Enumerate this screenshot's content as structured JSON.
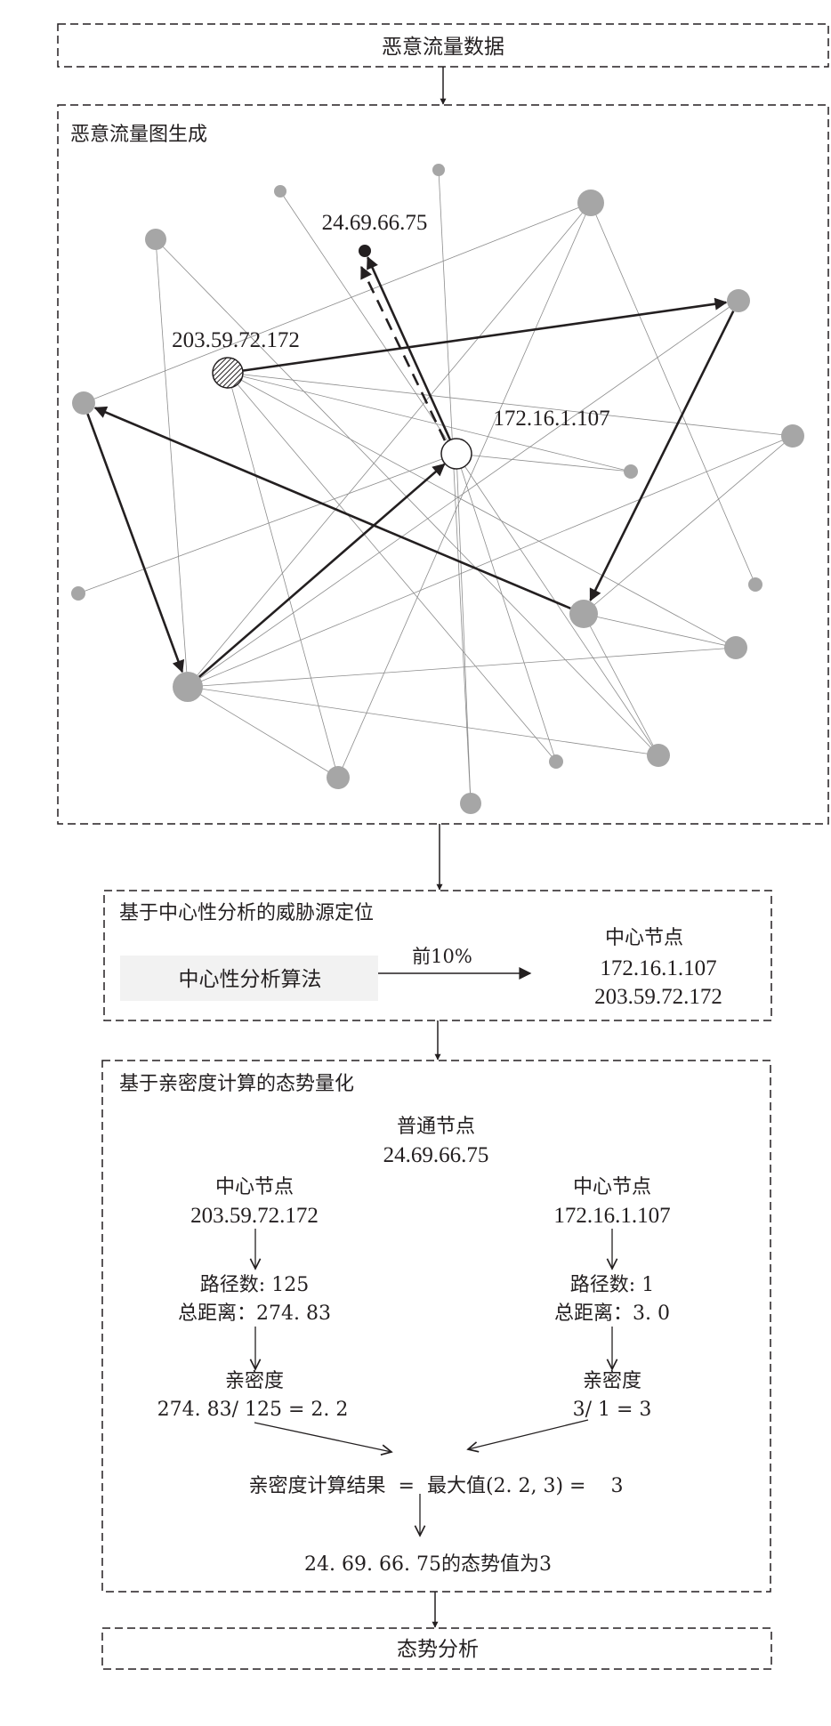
{
  "input_box": {
    "label": "恶意流量数据"
  },
  "graph_box": {
    "title": "恶意流量图生成",
    "labels": {
      "target": "24.69.66.75",
      "hub_a": "203.59.72.172",
      "hub_b": "172.16.1.107"
    },
    "colors": {
      "node": "#a6a6a6",
      "edge": "#8c8c8c",
      "arrow": "#231f20"
    }
  },
  "centrality_box": {
    "title": "基于中心性分析的威胁源定位",
    "algorithm": "中心性分析算法",
    "arrow_label": "前10%",
    "result_title": "中心节点",
    "result_nodes": [
      "172.16.1.107",
      "203.59.72.172"
    ],
    "algorithm_fill": "#f2f2f2"
  },
  "intimacy_box": {
    "title": "基于亲密度计算的态势量化",
    "normal_node_title": "普通节点",
    "normal_node_ip": "24.69.66.75",
    "left": {
      "title": "中心节点",
      "ip": "203.59.72.172",
      "paths": "路径数:  125",
      "distance": "总距离：274. 83",
      "intimacy_title": "亲密度",
      "intimacy": "274. 83/ 125  =  2. 2"
    },
    "right": {
      "title": "中心节点",
      "ip": "172.16.1.107",
      "paths": "路径数:  1",
      "distance": "总距离：3. 0",
      "intimacy_title": "亲密度",
      "intimacy": "3/ 1  =  3"
    },
    "result": "亲密度计算结果  =  最大值(2. 2, 3) =    3",
    "conclusion": "24. 69. 66. 75的态势值为3"
  },
  "output_box": {
    "label": "态势分析"
  }
}
